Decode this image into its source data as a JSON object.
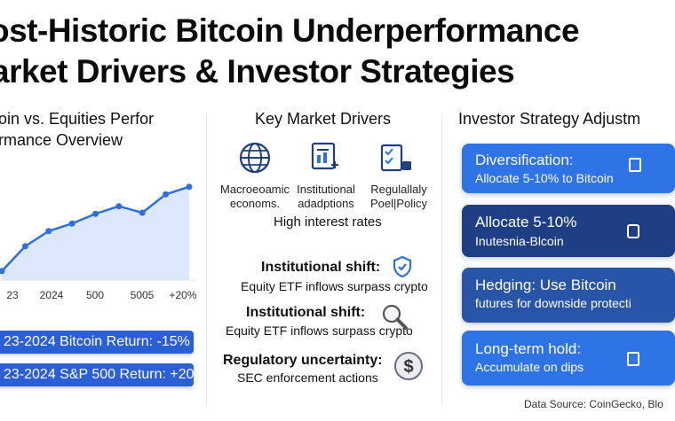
{
  "header": {
    "title_line1": "ost-Historic Bitcoin Underperformance",
    "title_line2": "arket Drivers & Investor Strategies"
  },
  "left": {
    "heading_line1": "oin vs. Equities Perfor",
    "heading_line2": "rmance Overview",
    "pills": [
      "23-2024 Bitcoin Return: -15%",
      "23-2024 S&P 500 Return: +20%"
    ]
  },
  "chart_data": {
    "type": "area",
    "title": "",
    "x_tick_labels": [
      "23",
      "2024",
      "500",
      "5005",
      "+20%"
    ],
    "values": [
      0.5,
      2.8,
      4.2,
      4.9,
      5.8,
      6.5,
      5.9,
      7.6,
      8.3
    ],
    "ylim": [
      0,
      10
    ],
    "grid": false,
    "colors": {
      "line": "#2f6fe0",
      "fill": "#d7e4fb"
    }
  },
  "middle": {
    "heading": "Key Market Drivers",
    "icon_captions": [
      {
        "line1": "Macroeoamic",
        "line2": "economs."
      },
      {
        "line1": "Institutional",
        "line2": "adadptions"
      },
      {
        "line1": "Regulallaly",
        "line2": "Poel|Policy"
      }
    ],
    "high_rates": "High interest rates",
    "items": [
      {
        "title": "Institutional shift:",
        "desc": "Equity ETF inflows surpass crypto",
        "icon": "shield-check-icon"
      },
      {
        "title": "Institutional shift:",
        "desc": "Equity ETF inflows surpass crypto",
        "icon": "magnifier-icon"
      },
      {
        "title": "Regulatory uncertainty:",
        "desc": "SEC enforcement actions",
        "icon": "dollar-coin-icon"
      }
    ]
  },
  "right": {
    "heading": "Investor Strategy Adjustm",
    "cards": [
      {
        "title": "Diversification:",
        "sub": "Allocate 5-10% to Bitcoin",
        "color": "#2f74e6"
      },
      {
        "title": "Allocate 5-10%",
        "sub": "Inutesnia-Blcoin",
        "color": "#1f3f85"
      },
      {
        "title": "Hedging: Use Bitcoin",
        "sub": "futures for downside protecti",
        "color": "#2855a8"
      },
      {
        "title": "Long-term hold:",
        "sub": "Accumulate on dips",
        "color": "#2f74e6"
      }
    ]
  },
  "footer": {
    "source": "Data Source: CoinGecko, Blo"
  }
}
